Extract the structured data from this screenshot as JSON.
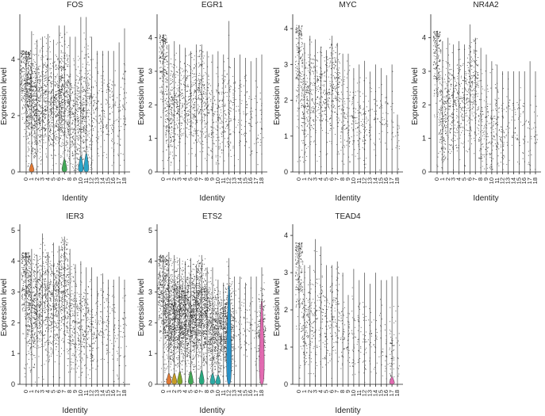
{
  "figure": {
    "xlabel": "Identity",
    "ylabel": "Expression level"
  },
  "chart_data": [
    {
      "type": "violin",
      "title": "FOS",
      "categories": [
        "0",
        "1",
        "2",
        "3",
        "4",
        "5",
        "6",
        "7",
        "8",
        "9",
        "10",
        "11",
        "12",
        "13",
        "14",
        "15",
        "16",
        "17",
        "18"
      ],
      "yticks": [
        0,
        2,
        4
      ],
      "ylim": [
        0,
        5.6
      ],
      "max_values": [
        4.3,
        5.0,
        4.7,
        4.8,
        4.9,
        4.7,
        5.2,
        5.2,
        4.8,
        4.8,
        5.5,
        5.5,
        4.8,
        4.3,
        4.3,
        4.3,
        4.3,
        4.6,
        5.1
      ],
      "density": [
        1.0,
        0.9,
        0.5,
        0.45,
        0.45,
        0.4,
        0.55,
        0.8,
        0.35,
        0.4,
        0.5,
        0.45,
        0.2,
        0.12,
        0.12,
        0.12,
        0.12,
        0.08,
        0.1
      ],
      "center_values": [
        3.4,
        2.2,
        2.3,
        2.4,
        2.6,
        2.3,
        2.4,
        2.6,
        2.1,
        1.6,
        1.9,
        2.2,
        1.8,
        2.2,
        2.2,
        2.2,
        2.0,
        1.6,
        2.8
      ],
      "violins": [
        {
          "category": "1",
          "height": 0.3,
          "color": "#e3762d"
        },
        {
          "category": "7",
          "height": 0.45,
          "color": "#3ba651"
        },
        {
          "category": "10",
          "height": 0.55,
          "color": "#23a3c8"
        },
        {
          "category": "11",
          "height": 0.65,
          "color": "#23a3c8"
        }
      ]
    },
    {
      "type": "violin",
      "title": "EGR1",
      "categories": [
        "0",
        "1",
        "2",
        "3",
        "4",
        "5",
        "6",
        "7",
        "8",
        "9",
        "10",
        "11",
        "12",
        "13",
        "14",
        "15",
        "16",
        "17",
        "18"
      ],
      "yticks": [
        0,
        1,
        2,
        3,
        4
      ],
      "ylim": [
        0,
        4.7
      ],
      "max_values": [
        4.1,
        3.8,
        3.9,
        3.8,
        3.7,
        3.6,
        3.8,
        3.8,
        3.6,
        3.5,
        3.6,
        3.5,
        4.5,
        3.4,
        3.5,
        3.4,
        3.3,
        3.4,
        3.5
      ],
      "density": [
        0.55,
        0.45,
        0.3,
        0.25,
        0.25,
        0.22,
        0.3,
        0.35,
        0.2,
        0.15,
        0.18,
        0.18,
        0.2,
        0.08,
        0.08,
        0.08,
        0.06,
        0.05,
        0.05
      ],
      "center_values": [
        3.4,
        1.8,
        2.0,
        2.0,
        2.1,
        2.0,
        2.1,
        2.4,
        1.8,
        1.6,
        1.6,
        1.8,
        1.8,
        1.8,
        1.8,
        1.8,
        1.6,
        1.4,
        1.6
      ],
      "violins": []
    },
    {
      "type": "violin",
      "title": "MYC",
      "categories": [
        "0",
        "1",
        "2",
        "3",
        "4",
        "5",
        "6",
        "7",
        "8",
        "9",
        "10",
        "11",
        "12",
        "13",
        "14",
        "15",
        "16",
        "17",
        "18"
      ],
      "yticks": [
        0,
        1,
        2,
        3,
        4
      ],
      "ylim": [
        0,
        4.4
      ],
      "max_values": [
        4.1,
        3.6,
        3.8,
        3.7,
        3.5,
        3.4,
        3.8,
        3.6,
        3.3,
        3.3,
        2.9,
        3.0,
        3.1,
        2.8,
        3.0,
        2.9,
        2.7,
        3.0,
        1.6
      ],
      "density": [
        0.45,
        0.35,
        0.25,
        0.22,
        0.2,
        0.2,
        0.25,
        0.25,
        0.15,
        0.12,
        0.12,
        0.12,
        0.12,
        0.06,
        0.06,
        0.06,
        0.05,
        0.04,
        0.04
      ],
      "center_values": [
        3.2,
        1.8,
        2.2,
        2.2,
        2.2,
        2.2,
        2.3,
        2.6,
        1.6,
        1.6,
        1.4,
        1.6,
        1.4,
        1.6,
        1.5,
        1.6,
        1.4,
        1.4,
        0.9
      ],
      "violins": []
    },
    {
      "type": "violin",
      "title": "NR4A2",
      "categories": [
        "0",
        "1",
        "2",
        "3",
        "4",
        "5",
        "6",
        "7",
        "8",
        "9",
        "10",
        "11",
        "12",
        "13",
        "14",
        "15",
        "16",
        "17",
        "18"
      ],
      "yticks": [
        0,
        1,
        2,
        3,
        4
      ],
      "ylim": [
        0,
        4.7
      ],
      "max_values": [
        4.2,
        3.9,
        4.0,
        3.8,
        3.9,
        3.8,
        4.4,
        4.0,
        3.7,
        3.5,
        3.3,
        3.2,
        3.0,
        3.0,
        3.0,
        3.0,
        3.0,
        3.3,
        3.0
      ],
      "density": [
        0.5,
        0.4,
        0.3,
        0.25,
        0.25,
        0.22,
        0.3,
        0.3,
        0.18,
        0.15,
        0.15,
        0.15,
        0.12,
        0.06,
        0.06,
        0.06,
        0.05,
        0.05,
        0.05
      ],
      "center_values": [
        3.4,
        1.6,
        2.0,
        2.0,
        2.0,
        2.0,
        2.4,
        2.6,
        1.4,
        1.2,
        1.0,
        1.4,
        1.2,
        1.4,
        1.4,
        1.4,
        1.2,
        1.0,
        1.1
      ],
      "violins": []
    },
    {
      "type": "violin",
      "title": "IER3",
      "categories": [
        "0",
        "1",
        "2",
        "3",
        "4",
        "5",
        "6",
        "7",
        "8",
        "9",
        "10",
        "11",
        "12",
        "13",
        "14",
        "15",
        "16",
        "17",
        "18"
      ],
      "yticks": [
        0,
        1,
        2,
        3,
        4,
        5
      ],
      "ylim": [
        0,
        5.2
      ],
      "max_values": [
        4.3,
        4.4,
        4.2,
        4.9,
        4.3,
        4.6,
        4.5,
        4.8,
        4.4,
        3.9,
        4.0,
        3.8,
        3.8,
        3.5,
        3.6,
        3.4,
        3.4,
        3.5,
        3.4
      ],
      "density": [
        0.8,
        0.7,
        0.5,
        0.45,
        0.45,
        0.4,
        0.5,
        0.55,
        0.3,
        0.25,
        0.25,
        0.25,
        0.2,
        0.1,
        0.1,
        0.1,
        0.08,
        0.06,
        0.06
      ],
      "center_values": [
        3.5,
        2.4,
        2.6,
        2.8,
        2.8,
        2.6,
        2.8,
        3.4,
        2.0,
        2.0,
        1.8,
        2.0,
        1.6,
        2.0,
        2.0,
        2.0,
        1.8,
        0.9,
        2.0
      ],
      "violins": []
    },
    {
      "type": "violin",
      "title": "ETS2",
      "categories": [
        "0",
        "1",
        "2",
        "3",
        "4",
        "5",
        "6",
        "7",
        "8",
        "9",
        "10",
        "11",
        "12",
        "13",
        "14",
        "15",
        "16",
        "17",
        "18"
      ],
      "yticks": [
        0,
        1,
        2,
        3,
        4,
        5
      ],
      "ylim": [
        0,
        5.2
      ],
      "max_values": [
        4.2,
        4.3,
        4.2,
        4.1,
        4.0,
        4.1,
        3.9,
        4.2,
        3.8,
        3.8,
        3.4,
        3.3,
        4.1,
        3.5,
        3.5,
        3.3,
        3.5,
        3.5,
        3.8
      ],
      "density": [
        1.0,
        1.0,
        1.0,
        1.0,
        1.0,
        0.9,
        0.9,
        1.0,
        0.7,
        0.6,
        0.6,
        0.6,
        0.8,
        0.08,
        0.08,
        0.08,
        0.06,
        0.06,
        0.5
      ],
      "center_values": [
        3.2,
        2.2,
        2.2,
        2.3,
        2.2,
        2.2,
        2.3,
        2.6,
        2.0,
        1.8,
        1.6,
        1.8,
        1.8,
        2.0,
        2.0,
        2.0,
        1.8,
        1.6,
        1.8
      ],
      "violins": [
        {
          "category": "1",
          "height": 0.35,
          "color": "#e3762d"
        },
        {
          "category": "2",
          "height": 0.35,
          "color": "#c79a1c"
        },
        {
          "category": "3",
          "height": 0.4,
          "color": "#7fa41f"
        },
        {
          "category": "5",
          "height": 0.42,
          "color": "#3ba651"
        },
        {
          "category": "7",
          "height": 0.45,
          "color": "#1fa77b"
        },
        {
          "category": "9",
          "height": 0.35,
          "color": "#24a8a3"
        },
        {
          "category": "10",
          "height": 0.3,
          "color": "#24a8a3"
        },
        {
          "category": "12",
          "height": 3.2,
          "color": "#1f8fc9"
        },
        {
          "category": "18",
          "height": 2.7,
          "color": "#e466b0"
        }
      ]
    },
    {
      "type": "violin",
      "title": "TEAD4",
      "categories": [
        "0",
        "1",
        "2",
        "3",
        "4",
        "5",
        "6",
        "7",
        "8",
        "9",
        "10",
        "11",
        "12",
        "13",
        "14",
        "15",
        "16",
        "17",
        "18"
      ],
      "yticks": [
        0,
        1,
        2,
        3,
        4
      ],
      "ylim": [
        0,
        4.3
      ],
      "max_values": [
        3.8,
        3.2,
        3.2,
        3.9,
        3.7,
        3.2,
        3.2,
        3.3,
        3.0,
        2.4,
        3.1,
        2.8,
        3.0,
        2.7,
        3.0,
        2.8,
        2.8,
        2.9,
        2.9
      ],
      "density": [
        0.5,
        0.25,
        0.2,
        0.15,
        0.15,
        0.12,
        0.15,
        0.15,
        0.1,
        0.08,
        0.08,
        0.08,
        0.08,
        0.05,
        0.05,
        0.05,
        0.04,
        0.15,
        0.04
      ],
      "center_values": [
        3.1,
        1.6,
        1.8,
        1.8,
        1.8,
        1.6,
        1.8,
        2.0,
        1.4,
        1.2,
        1.2,
        1.4,
        1.2,
        1.2,
        1.2,
        1.2,
        1.0,
        0.9,
        1.0
      ],
      "violins": [
        {
          "category": "17",
          "height": 0.2,
          "color": "#e466b0"
        }
      ]
    }
  ]
}
